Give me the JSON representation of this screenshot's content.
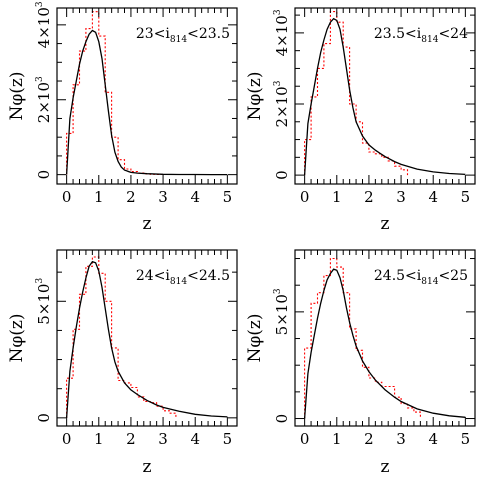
{
  "chart_data": [
    {
      "type": "line",
      "label": {
        "pre": "23<i",
        "sub": "814",
        "post": "<23.5"
      },
      "xlabel": "z",
      "ylabel": "Nφ(z)",
      "xlim": [
        -0.3,
        5.3
      ],
      "ylim": [
        -250,
        4450
      ],
      "xticks": [
        0,
        1,
        2,
        3,
        4,
        5
      ],
      "yticks": [
        {
          "value": 0,
          "mantissa": "0",
          "exp": ""
        },
        {
          "value": 2000,
          "mantissa": "2×10",
          "exp": "3"
        },
        {
          "value": 4000,
          "mantissa": "4×10",
          "exp": "3"
        }
      ],
      "model_curve": {
        "x": [
          0,
          0.1,
          0.2,
          0.3,
          0.4,
          0.5,
          0.6,
          0.7,
          0.8,
          0.9,
          1.0,
          1.1,
          1.2,
          1.3,
          1.4,
          1.5,
          1.6,
          1.7,
          1.8,
          2.0,
          2.2,
          2.5,
          3.0,
          3.5,
          4.0,
          4.5,
          5.0
        ],
        "y": [
          0,
          1500,
          2050,
          2500,
          2950,
          3300,
          3550,
          3750,
          3850,
          3800,
          3550,
          3100,
          2400,
          1700,
          1050,
          600,
          350,
          200,
          120,
          60,
          40,
          25,
          10,
          5,
          3,
          2,
          1
        ]
      },
      "histogram": {
        "bin_edges": [
          0,
          0.2,
          0.4,
          0.6,
          0.8,
          1.0,
          1.2,
          1.4,
          1.6,
          1.8,
          2.0,
          2.2,
          2.4,
          2.6,
          2.8,
          3.0
        ],
        "counts": [
          1100,
          2400,
          3300,
          3900,
          4350,
          3700,
          2200,
          1000,
          400,
          150,
          80,
          40,
          20,
          10,
          5
        ]
      }
    },
    {
      "type": "line",
      "label": {
        "pre": "23.5<i",
        "sub": "814",
        "post": "<24"
      },
      "xlabel": "z",
      "ylabel": "Nφ(z)",
      "xlim": [
        -0.3,
        5.3
      ],
      "ylim": [
        -250,
        4700
      ],
      "xticks": [
        0,
        1,
        2,
        3,
        4,
        5
      ],
      "yticks": [
        {
          "value": 0,
          "mantissa": "0",
          "exp": ""
        },
        {
          "value": 2000,
          "mantissa": "2×10",
          "exp": "3"
        },
        {
          "value": 4000,
          "mantissa": "4×10",
          "exp": "3"
        }
      ],
      "model_curve": {
        "x": [
          0,
          0.1,
          0.2,
          0.3,
          0.4,
          0.5,
          0.6,
          0.7,
          0.8,
          0.9,
          1.0,
          1.1,
          1.2,
          1.3,
          1.4,
          1.5,
          1.6,
          1.8,
          2.0,
          2.2,
          2.5,
          2.8,
          3.0,
          3.5,
          4.0,
          4.5,
          5.0
        ],
        "y": [
          0,
          1450,
          2000,
          2500,
          3000,
          3450,
          3800,
          4100,
          4300,
          4400,
          4350,
          4100,
          3600,
          3000,
          2400,
          1900,
          1500,
          1100,
          850,
          700,
          520,
          380,
          300,
          170,
          90,
          45,
          20
        ]
      },
      "histogram": {
        "bin_edges": [
          0,
          0.2,
          0.4,
          0.6,
          0.8,
          1.0,
          1.2,
          1.4,
          1.6,
          1.8,
          2.0,
          2.2,
          2.4,
          2.6,
          2.8,
          3.0,
          3.2
        ],
        "counts": [
          1000,
          2200,
          3000,
          3700,
          4600,
          4300,
          3600,
          2000,
          1500,
          900,
          650,
          600,
          500,
          400,
          250,
          150
        ]
      }
    },
    {
      "type": "line",
      "label": {
        "pre": "24<i",
        "sub": "814",
        "post": "<24.5"
      },
      "xlabel": "z",
      "ylabel": "Nφ(z)",
      "xlim": [
        -0.3,
        5.3
      ],
      "ylim": [
        -350,
        7200
      ],
      "xticks": [
        0,
        1,
        2,
        3,
        4,
        5
      ],
      "yticks": [
        {
          "value": 0,
          "mantissa": "0",
          "exp": ""
        },
        {
          "value": 5000,
          "mantissa": "5×10",
          "exp": "3"
        }
      ],
      "model_curve": {
        "x": [
          0,
          0.1,
          0.2,
          0.3,
          0.4,
          0.5,
          0.6,
          0.7,
          0.8,
          0.9,
          1.0,
          1.1,
          1.2,
          1.3,
          1.4,
          1.5,
          1.6,
          1.8,
          2.0,
          2.2,
          2.5,
          2.8,
          3.0,
          3.5,
          4.0,
          4.5,
          5.0
        ],
        "y": [
          0,
          2000,
          3000,
          3900,
          4700,
          5400,
          6000,
          6500,
          6700,
          6650,
          6300,
          5600,
          4700,
          3800,
          3000,
          2400,
          2000,
          1500,
          1200,
          1000,
          750,
          550,
          450,
          280,
          150,
          80,
          40
        ]
      },
      "histogram": {
        "bin_edges": [
          0,
          0.2,
          0.4,
          0.6,
          0.8,
          1.0,
          1.2,
          1.4,
          1.6,
          1.8,
          2.0,
          2.2,
          2.4,
          2.6,
          2.8,
          3.0,
          3.2,
          3.4
        ],
        "counts": [
          1700,
          3800,
          5300,
          6500,
          6900,
          6200,
          5000,
          3000,
          1600,
          1500,
          1300,
          900,
          700,
          650,
          500,
          300,
          200
        ]
      }
    },
    {
      "type": "line",
      "label": {
        "pre": "24.5<i",
        "sub": "814",
        "post": "<25"
      },
      "xlabel": "z",
      "ylabel": "Nφ(z)",
      "xlim": [
        -0.3,
        5.3
      ],
      "ylim": [
        -350,
        7900
      ],
      "xticks": [
        0,
        1,
        2,
        3,
        4,
        5
      ],
      "yticks": [
        {
          "value": 0,
          "mantissa": "0",
          "exp": ""
        },
        {
          "value": 5000,
          "mantissa": "5×10",
          "exp": "3"
        }
      ],
      "model_curve": {
        "x": [
          0,
          0.1,
          0.2,
          0.3,
          0.4,
          0.5,
          0.6,
          0.7,
          0.8,
          0.9,
          1.0,
          1.1,
          1.2,
          1.3,
          1.4,
          1.5,
          1.6,
          1.8,
          2.0,
          2.2,
          2.5,
          2.8,
          3.0,
          3.5,
          4.0,
          4.5,
          5.0
        ],
        "y": [
          0,
          2100,
          3100,
          3900,
          4700,
          5400,
          6000,
          6500,
          6800,
          7000,
          6950,
          6600,
          6000,
          5200,
          4500,
          3900,
          3400,
          2700,
          2200,
          1800,
          1350,
          1000,
          800,
          450,
          250,
          130,
          60
        ]
      },
      "histogram": {
        "bin_edges": [
          0,
          0.2,
          0.4,
          0.6,
          0.8,
          1.0,
          1.2,
          1.4,
          1.6,
          1.8,
          2.0,
          2.2,
          2.4,
          2.6,
          2.8,
          3.0,
          3.2,
          3.4,
          3.6
        ],
        "counts": [
          3300,
          5400,
          5900,
          6700,
          7500,
          7100,
          5900,
          4200,
          3200,
          2400,
          1900,
          1700,
          1500,
          1500,
          1000,
          700,
          500,
          300
        ]
      }
    }
  ],
  "colors": {
    "curve": "#000000",
    "histogram": "#ff0000",
    "axes": "#000000"
  }
}
